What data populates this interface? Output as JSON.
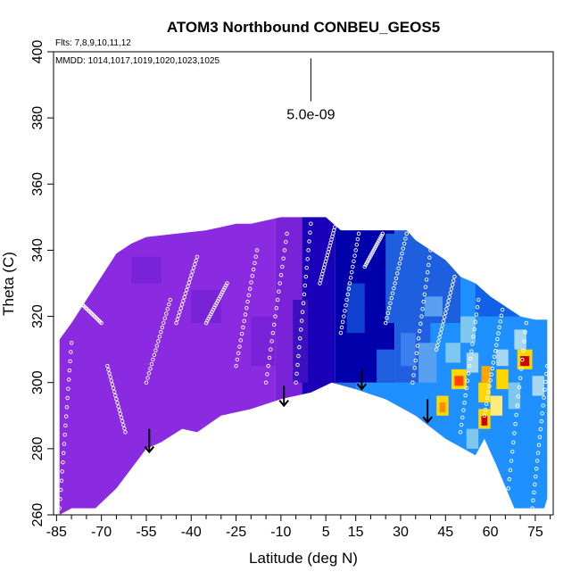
{
  "chart_data": {
    "type": "heatmap",
    "title": "ATOM3 Northbound CONBEU_GEOS5",
    "flights_note": "Flts: 7,8,9,10,11,12",
    "dates_note": "MMDD: 1014,1017,1019,1020,1023,1025",
    "xlabel": "Latitude (deg N)",
    "ylabel": "Theta (C)",
    "xlim": [
      -86,
      81
    ],
    "ylim": [
      260,
      400
    ],
    "x_ticks": [
      -85,
      -70,
      -55,
      -40,
      -25,
      -10,
      5,
      15,
      30,
      45,
      60,
      75
    ],
    "x_tick_labels": [
      "-85",
      "-70",
      "-55",
      "-40",
      "-25",
      "-10",
      "5",
      "15",
      "30",
      "45",
      "60",
      "75"
    ],
    "x_minor_ticks": [
      -80,
      -75,
      -65,
      -60,
      -50,
      -45,
      -35,
      -30,
      -20,
      -15,
      -5,
      0,
      10,
      20,
      25,
      35,
      40,
      50,
      55,
      65,
      70,
      80
    ],
    "y_ticks": [
      260,
      280,
      300,
      320,
      340,
      360,
      380,
      400
    ],
    "y_tick_labels": [
      "260",
      "280",
      "300",
      "320",
      "340",
      "360",
      "380",
      "400"
    ],
    "scale_bar_label": "5.0e-09",
    "scale_bar_lat": 0,
    "scale_bar_theta": [
      385,
      398
    ],
    "grid": false,
    "colors": {
      "south_purple": "#8a2be2",
      "tropical_blue": "#0000aa",
      "north_blue": "#1e90ff",
      "light_blue": "#7ec8f0",
      "high_yellow": "#ffd700",
      "high_orange": "#ff8c00",
      "high_red": "#cc0000",
      "point_outline": "#ffffff",
      "arrow": "#000000"
    },
    "domain": {
      "top_theta": [
        [
          -84,
          313
        ],
        [
          -80,
          318
        ],
        [
          -75,
          325
        ],
        [
          -70,
          332
        ],
        [
          -65,
          339
        ],
        [
          -60,
          342
        ],
        [
          -55,
          344
        ],
        [
          -45,
          345
        ],
        [
          -35,
          346
        ],
        [
          -25,
          348
        ],
        [
          -20,
          348
        ],
        [
          -10,
          350
        ],
        [
          0,
          350
        ],
        [
          5,
          350
        ],
        [
          10,
          346
        ],
        [
          20,
          346
        ],
        [
          32,
          346
        ],
        [
          35,
          343
        ],
        [
          40,
          340
        ],
        [
          45,
          337
        ],
        [
          50,
          332
        ],
        [
          55,
          330
        ],
        [
          60,
          326
        ],
        [
          65,
          323
        ],
        [
          70,
          320
        ],
        [
          75,
          319
        ],
        [
          79,
          319
        ]
      ],
      "bottom_theta": [
        [
          -84,
          260
        ],
        [
          -80,
          262
        ],
        [
          -72,
          262
        ],
        [
          -65,
          268
        ],
        [
          -55,
          280
        ],
        [
          -50,
          282
        ],
        [
          -43,
          286
        ],
        [
          -38,
          285
        ],
        [
          -30,
          290
        ],
        [
          -20,
          292
        ],
        [
          -10,
          295
        ],
        [
          0,
          297
        ],
        [
          7,
          300
        ],
        [
          15,
          298
        ],
        [
          25,
          295
        ],
        [
          35,
          290
        ],
        [
          45,
          283
        ],
        [
          55,
          278
        ],
        [
          58,
          283
        ],
        [
          62,
          275
        ],
        [
          68,
          262
        ],
        [
          78,
          262
        ],
        [
          79,
          265
        ]
      ]
    },
    "bands": [
      {
        "lat": [
          -86,
          -12
        ],
        "theta": [
          255,
          355
        ],
        "color": "#8a2be2"
      },
      {
        "lat": [
          -12,
          -3
        ],
        "theta": [
          255,
          355
        ],
        "color": "#7a22d8"
      },
      {
        "lat": [
          -3,
          8
        ],
        "theta": [
          255,
          355
        ],
        "color": "#1a00b8"
      },
      {
        "lat": [
          8,
          28
        ],
        "theta": [
          255,
          355
        ],
        "color": "#0000aa"
      },
      {
        "lat": [
          28,
          40
        ],
        "theta": [
          255,
          355
        ],
        "color": "#1f5fe0"
      },
      {
        "lat": [
          40,
          82
        ],
        "theta": [
          255,
          355
        ],
        "color": "#1e90ff"
      },
      {
        "lat": [
          8,
          30
        ],
        "theta": [
          285,
          300
        ],
        "color": "#2a6fea"
      },
      {
        "lat": [
          15,
          40
        ],
        "theta": [
          270,
          300
        ],
        "color": "#1e90ff"
      },
      {
        "lat": [
          25,
          50
        ],
        "theta": [
          318,
          345
        ],
        "color": "#1e5fe0"
      },
      {
        "lat": [
          55,
          80
        ],
        "theta": [
          320,
          335
        ],
        "color": "#1060e8"
      }
    ],
    "cells": [
      {
        "lat": [
          -60,
          -50
        ],
        "theta": [
          330,
          338
        ],
        "color": "#7a22d8"
      },
      {
        "lat": [
          -40,
          -30
        ],
        "theta": [
          318,
          328
        ],
        "color": "#7a22d8"
      },
      {
        "lat": [
          -20,
          -12
        ],
        "theta": [
          305,
          320
        ],
        "color": "#7a22d8"
      },
      {
        "lat": [
          -6,
          -1
        ],
        "theta": [
          300,
          325
        ],
        "color": "#3c10c0"
      },
      {
        "lat": [
          12,
          18
        ],
        "theta": [
          315,
          330
        ],
        "color": "#1040d0"
      },
      {
        "lat": [
          22,
          28
        ],
        "theta": [
          300,
          310
        ],
        "color": "#1f5fe0"
      },
      {
        "lat": [
          30,
          35
        ],
        "theta": [
          305,
          315
        ],
        "color": "#3a7ef0"
      },
      {
        "lat": [
          36,
          42
        ],
        "theta": [
          300,
          312
        ],
        "color": "#5aa0f0"
      },
      {
        "lat": [
          38,
          44
        ],
        "theta": [
          320,
          326
        ],
        "color": "#5aa0f0"
      },
      {
        "lat": [
          42,
          46
        ],
        "theta": [
          290,
          296
        ],
        "color": "#ffd700"
      },
      {
        "lat": [
          43,
          45
        ],
        "theta": [
          291,
          294
        ],
        "color": "#ff8c00"
      },
      {
        "lat": [
          47,
          52
        ],
        "theta": [
          298,
          304
        ],
        "color": "#ffd700"
      },
      {
        "lat": [
          48,
          51
        ],
        "theta": [
          299,
          302
        ],
        "color": "#ff4500"
      },
      {
        "lat": [
          45,
          50
        ],
        "theta": [
          306,
          312
        ],
        "color": "#7ec8f0"
      },
      {
        "lat": [
          50,
          55
        ],
        "theta": [
          312,
          320
        ],
        "color": "#7ec8f0"
      },
      {
        "lat": [
          52,
          56
        ],
        "theta": [
          303,
          309
        ],
        "color": "#a8d8f0"
      },
      {
        "lat": [
          56,
          60
        ],
        "theta": [
          286,
          292
        ],
        "color": "#ffd700"
      },
      {
        "lat": [
          57,
          59
        ],
        "theta": [
          287,
          290
        ],
        "color": "#cc0000"
      },
      {
        "lat": [
          56,
          60
        ],
        "theta": [
          294,
          300
        ],
        "color": "#ffd700"
      },
      {
        "lat": [
          57,
          60
        ],
        "theta": [
          300,
          305
        ],
        "color": "#ffa500"
      },
      {
        "lat": [
          60,
          64
        ],
        "theta": [
          290,
          296
        ],
        "color": "#ffeb7a"
      },
      {
        "lat": [
          62,
          66
        ],
        "theta": [
          298,
          304
        ],
        "color": "#ffd700"
      },
      {
        "lat": [
          62,
          66
        ],
        "theta": [
          305,
          310
        ],
        "color": "#a8d8f0"
      },
      {
        "lat": [
          66,
          70
        ],
        "theta": [
          292,
          300
        ],
        "color": "#7ec8f0"
      },
      {
        "lat": [
          69,
          74
        ],
        "theta": [
          304,
          310
        ],
        "color": "#ffd700"
      },
      {
        "lat": [
          70,
          73
        ],
        "theta": [
          305,
          308
        ],
        "color": "#cc0000"
      },
      {
        "lat": [
          68,
          72
        ],
        "theta": [
          310,
          316
        ],
        "color": "#a8d8f0"
      },
      {
        "lat": [
          74,
          78
        ],
        "theta": [
          296,
          302
        ],
        "color": "#a8d8f0"
      },
      {
        "lat": [
          52,
          56
        ],
        "theta": [
          280,
          286
        ],
        "color": "#7ec8f0"
      }
    ],
    "arrows": [
      {
        "lat": -54,
        "theta_top": 286,
        "theta_bottom": 279
      },
      {
        "lat": -9,
        "theta_top": 299,
        "theta_bottom": 293
      },
      {
        "lat": 17,
        "theta_top": 304,
        "theta_bottom": 298
      },
      {
        "lat": 39,
        "theta_top": 295,
        "theta_bottom": 288
      }
    ],
    "flight_tracks": [
      {
        "lat": [
          -84,
          -80
        ],
        "theta": [
          262,
          312
        ]
      },
      {
        "lat": [
          -78,
          -70
        ],
        "theta": [
          325,
          318
        ]
      },
      {
        "lat": [
          -68,
          -62
        ],
        "theta": [
          305,
          285
        ]
      },
      {
        "lat": [
          -55,
          -47
        ],
        "theta": [
          300,
          325
        ]
      },
      {
        "lat": [
          -45,
          -38
        ],
        "theta": [
          318,
          338
        ]
      },
      {
        "lat": [
          -35,
          -28
        ],
        "theta": [
          318,
          330
        ]
      },
      {
        "lat": [
          -25,
          -18
        ],
        "theta": [
          305,
          340
        ]
      },
      {
        "lat": [
          -15,
          -8
        ],
        "theta": [
          300,
          345
        ]
      },
      {
        "lat": [
          -5,
          0
        ],
        "theta": [
          300,
          348
        ]
      },
      {
        "lat": [
          3,
          8
        ],
        "theta": [
          330,
          347
        ]
      },
      {
        "lat": [
          10,
          16
        ],
        "theta": [
          315,
          345
        ]
      },
      {
        "lat": [
          18,
          24
        ],
        "theta": [
          335,
          345
        ]
      },
      {
        "lat": [
          25,
          32
        ],
        "theta": [
          318,
          345
        ]
      },
      {
        "lat": [
          34,
          40
        ],
        "theta": [
          300,
          340
        ]
      },
      {
        "lat": [
          42,
          48
        ],
        "theta": [
          310,
          332
        ]
      },
      {
        "lat": [
          50,
          56
        ],
        "theta": [
          285,
          325
        ]
      },
      {
        "lat": [
          58,
          64
        ],
        "theta": [
          290,
          322
        ]
      },
      {
        "lat": [
          66,
          72
        ],
        "theta": [
          268,
          318
        ]
      },
      {
        "lat": [
          74,
          79
        ],
        "theta": [
          262,
          305
        ]
      }
    ]
  }
}
